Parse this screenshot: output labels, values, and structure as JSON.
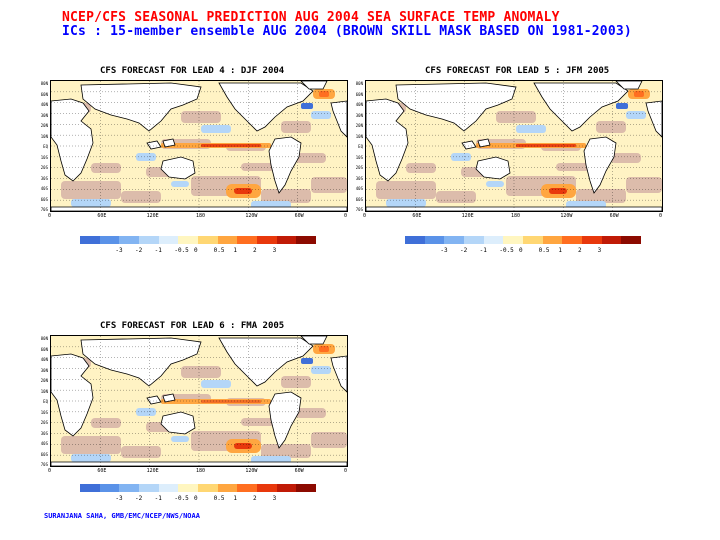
{
  "header": {
    "title": "NCEP/CFS SEASONAL PREDICTION AUG 2004 SEA SURFACE TEMP ANOMALY",
    "subtitle": "ICs : 15-member ensemble AUG 2004 (BROWN SKILL MASK BASED ON 1981-2003)"
  },
  "panels": [
    {
      "title": "CFS FORECAST FOR LEAD 4 :  DJF 2004"
    },
    {
      "title": "CFS FORECAST FOR LEAD 5 :  JFM 2005"
    },
    {
      "title": "CFS FORECAST FOR LEAD 6 :  FMA 2005"
    }
  ],
  "axes": {
    "lat_labels": [
      "80N",
      "60N",
      "40N",
      "30N",
      "20N",
      "10N",
      "EQ",
      "10S",
      "20S",
      "30S",
      "40S",
      "60S",
      "70S"
    ],
    "lon_labels": [
      "0",
      "60E",
      "120E",
      "180",
      "120W",
      "60W",
      "0"
    ]
  },
  "colorbar": {
    "labels": [
      "-3",
      "-2",
      "-1",
      "-0.5",
      "0",
      "0.5",
      "1",
      "2",
      "3"
    ],
    "colors": [
      "#3f6fd8",
      "#5a92e8",
      "#82b4f2",
      "#b4d6f8",
      "#ddeefc",
      "#fff6c0",
      "#ffd773",
      "#ffa640",
      "#ff6e20",
      "#e8380c",
      "#c01a06",
      "#8c0a00"
    ]
  },
  "credit": "SURANJANA SAHA, GMB/EMC/NCEP/NWS/NOAA"
}
